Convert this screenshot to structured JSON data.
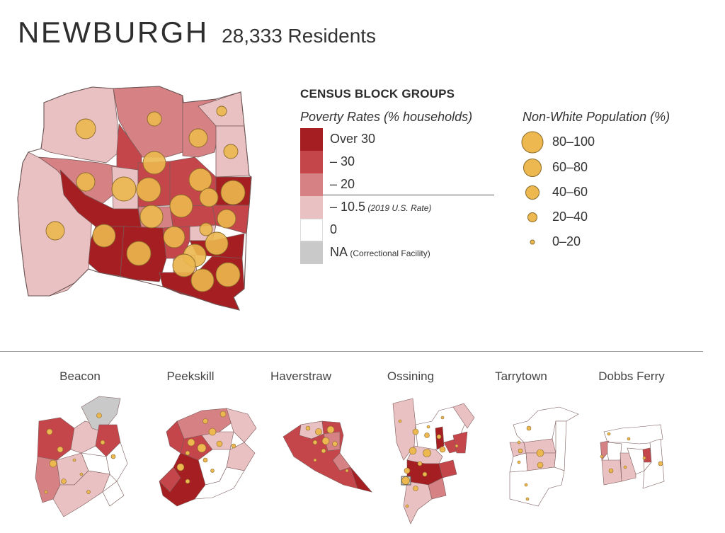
{
  "header": {
    "city": "NEWBURGH",
    "residents": "28,333 Residents"
  },
  "legend": {
    "heading": "CENSUS BLOCK GROUPS",
    "poverty_title": "Poverty Rates (% households)",
    "poverty_classes": [
      {
        "label": "Over 30",
        "note": "",
        "color": "#a51e22"
      },
      {
        "label": "– 30",
        "note": "",
        "color": "#c5464a"
      },
      {
        "label": "– 20",
        "note": "",
        "color": "#d68184"
      },
      {
        "label": "– 10.5",
        "note": "(2019 U.S. Rate)",
        "color": "#eac1c2"
      },
      {
        "label": "0",
        "note": "",
        "color": "#ffffff"
      },
      {
        "label": "NA",
        "note": "(Correctional Facility)",
        "color": "#c9c9c9"
      }
    ],
    "population_title": "Non-White Population (%)",
    "population_classes": [
      "80–100",
      "60–80",
      "40–60",
      "20–40",
      "0–20"
    ],
    "dot_color": "#ecb84f"
  },
  "small_multiples": [
    {
      "name": "Beacon"
    },
    {
      "name": "Peekskill"
    },
    {
      "name": "Haverstraw"
    },
    {
      "name": "Ossining"
    },
    {
      "name": "Tarrytown"
    },
    {
      "name": "Dobbs Ferry"
    }
  ]
}
